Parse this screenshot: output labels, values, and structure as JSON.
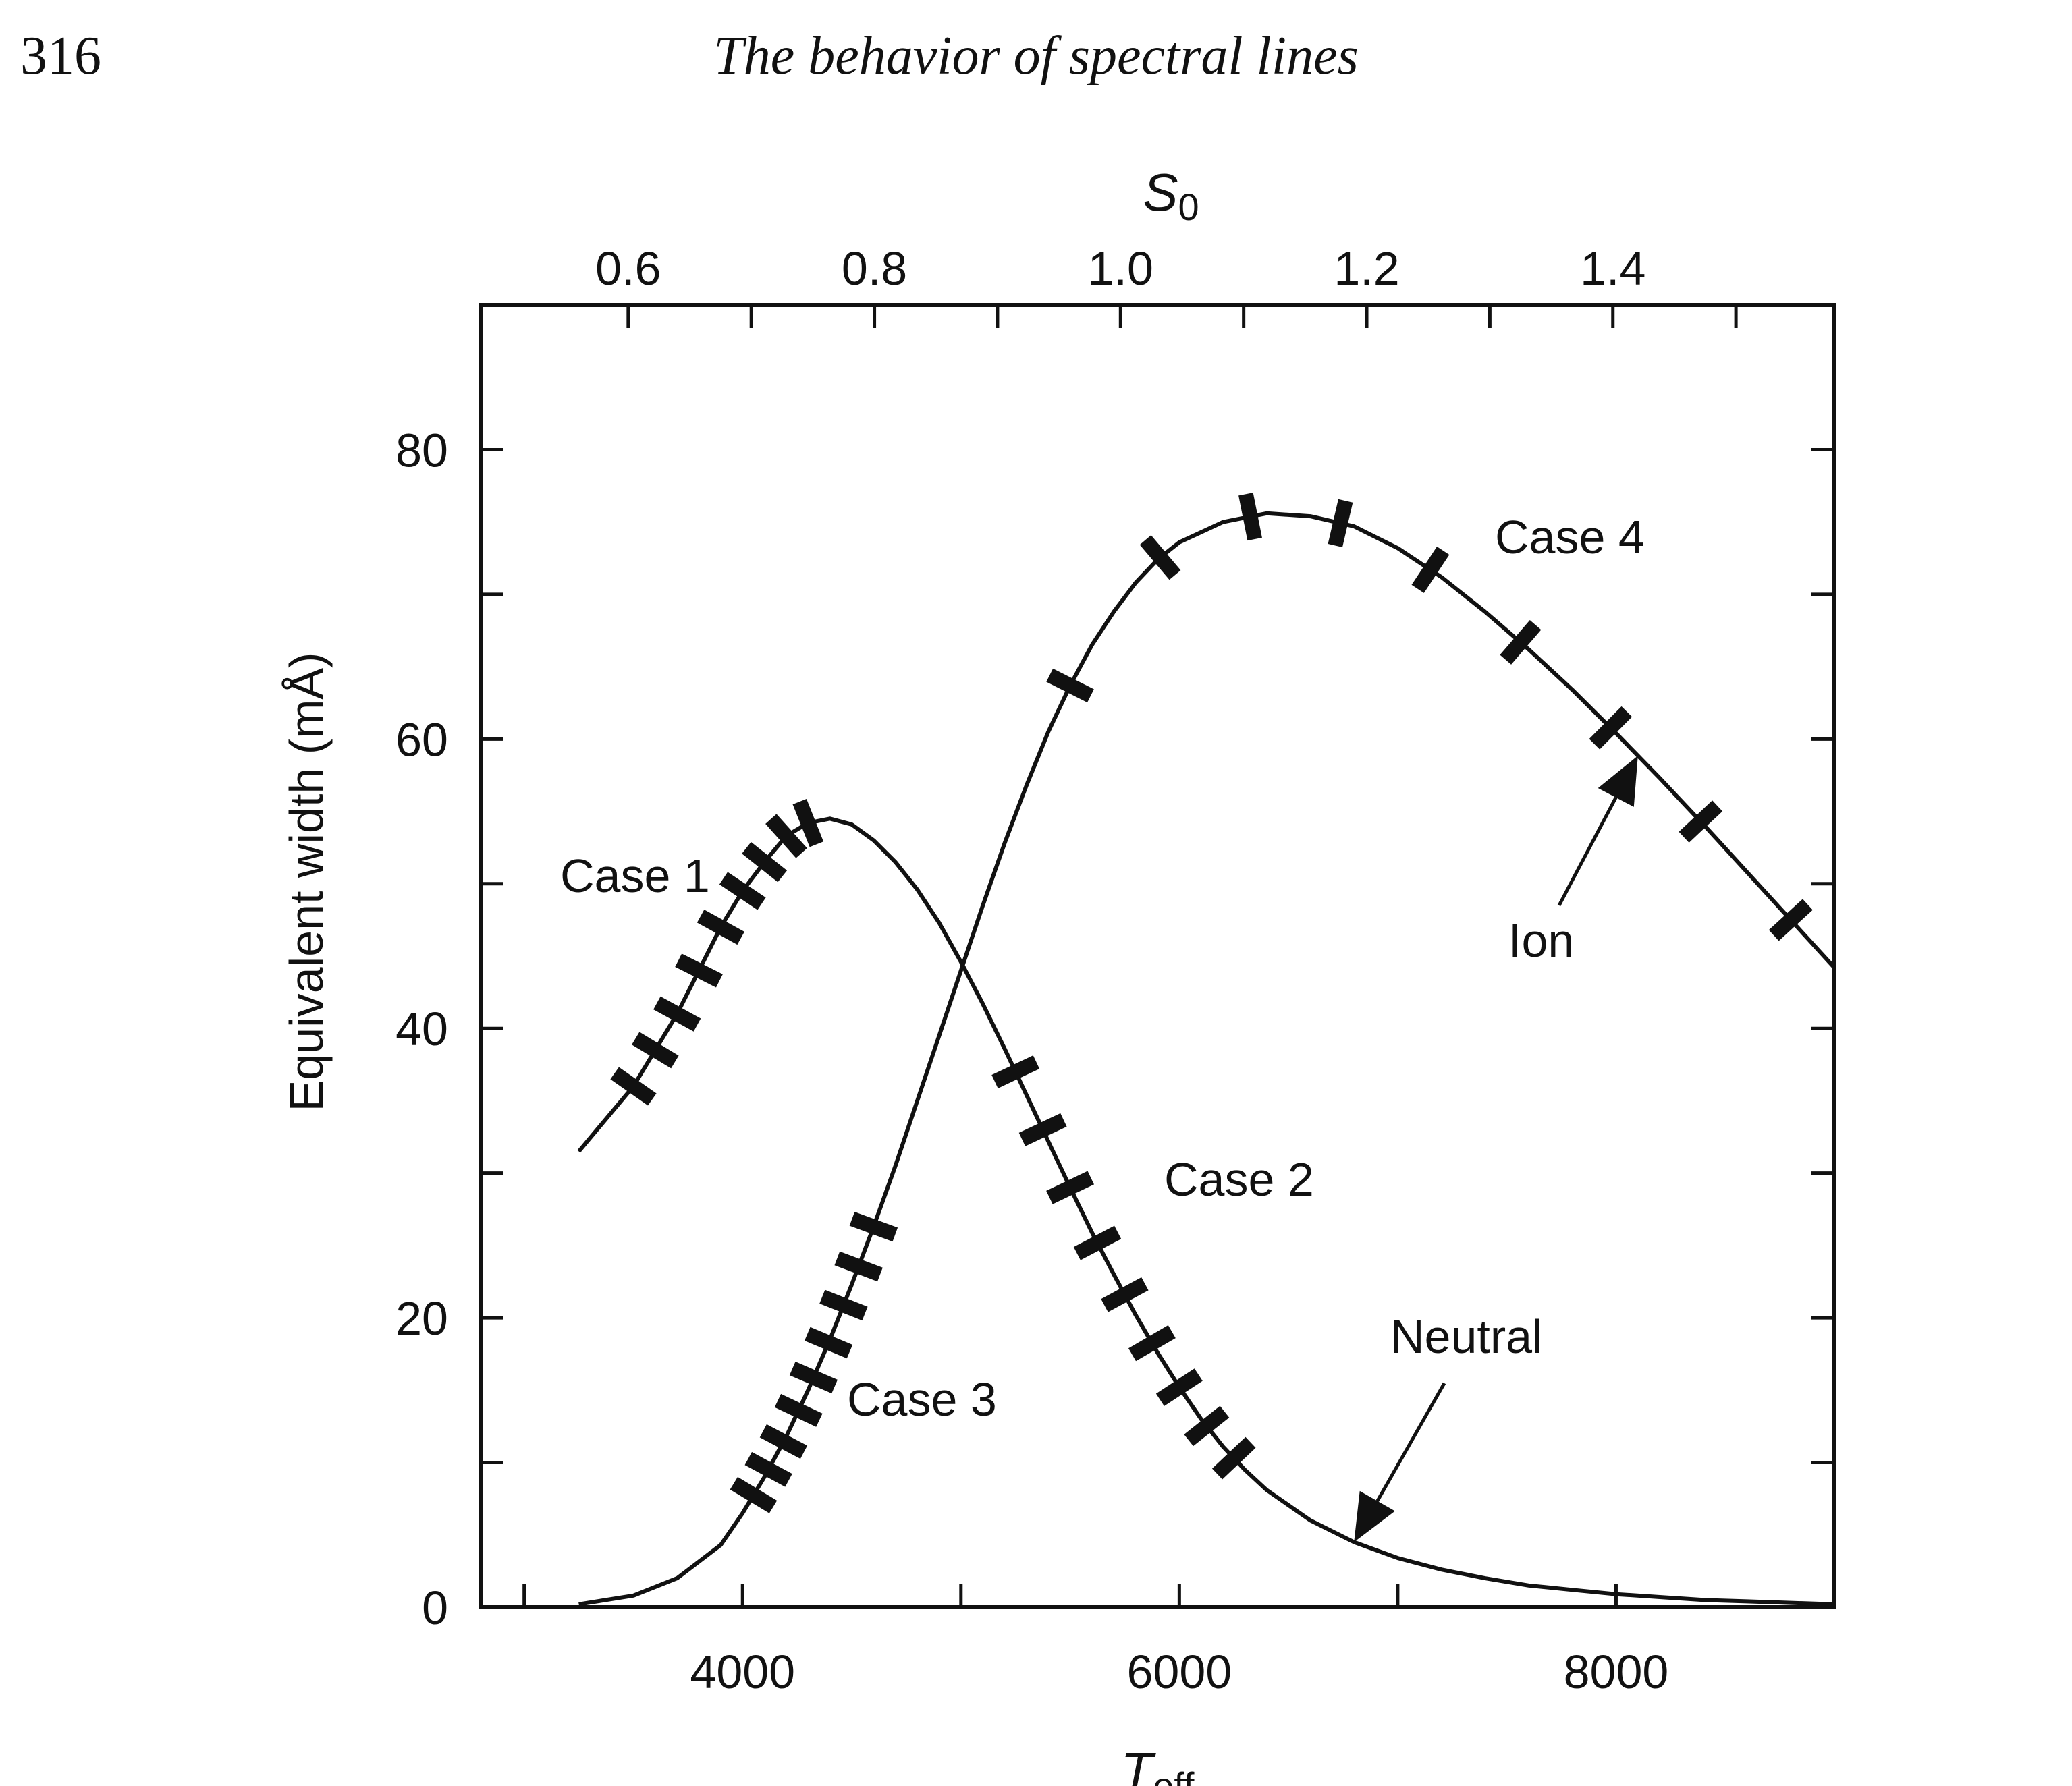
{
  "header": {
    "page_number": "316",
    "running_head": "The behavior of spectral lines"
  },
  "chart_data": {
    "type": "line",
    "xlabel": "T",
    "xlabel_sub": "eff",
    "ylabel": "Equivalent width (mÅ)",
    "top_xlabel": "S",
    "top_xlabel_sub": "0",
    "xlim": [
      2800,
      9000
    ],
    "ylim": [
      0,
      90
    ],
    "x_ticks": [
      4000,
      6000,
      8000
    ],
    "x_minor_ticks": [
      3000,
      5000,
      7000,
      9000
    ],
    "y_ticks": [
      0,
      20,
      40,
      60,
      80
    ],
    "y_minor_ticks": [
      10,
      30,
      50,
      70
    ],
    "top_ticks": [
      0.6,
      0.8,
      1.0,
      1.2,
      1.4
    ],
    "top_minor_ticks": [
      0.7,
      0.9,
      1.1,
      1.3,
      1.5
    ],
    "top_axis_range": [
      0.48,
      1.58
    ],
    "grid": false,
    "series": [
      {
        "name": "Neutral",
        "x": [
          3250,
          3500,
          3700,
          3900,
          4000,
          4100,
          4200,
          4300,
          4400,
          4500,
          4600,
          4700,
          4800,
          4900,
          5000,
          5100,
          5200,
          5300,
          5400,
          5500,
          5600,
          5700,
          5800,
          5900,
          6000,
          6100,
          6200,
          6300,
          6400,
          6600,
          6800,
          7000,
          7200,
          7400,
          7600,
          7800,
          8000,
          8200,
          8400,
          8600,
          8800,
          9000
        ],
        "y": [
          31.5,
          36,
          41,
          47,
          49.5,
          51.5,
          53.3,
          54.2,
          54.5,
          54.1,
          53,
          51.5,
          49.6,
          47.3,
          44.6,
          41.7,
          38.6,
          35.4,
          32.2,
          29,
          25.9,
          23,
          20.2,
          17.6,
          15.2,
          13,
          11.1,
          9.5,
          8.1,
          6,
          4.5,
          3.4,
          2.6,
          2,
          1.5,
          1.2,
          0.9,
          0.7,
          0.5,
          0.4,
          0.3,
          0.2
        ]
      },
      {
        "name": "Ion",
        "x": [
          3250,
          3500,
          3700,
          3900,
          4000,
          4100,
          4200,
          4300,
          4400,
          4500,
          4600,
          4700,
          4800,
          4900,
          5000,
          5100,
          5200,
          5300,
          5400,
          5500,
          5600,
          5700,
          5800,
          5900,
          6000,
          6200,
          6400,
          6600,
          6800,
          7000,
          7200,
          7400,
          7600,
          7800,
          8000,
          8200,
          8400,
          8600,
          8800,
          9000
        ],
        "y": [
          0.2,
          0.8,
          2,
          4.3,
          6.5,
          9,
          11.8,
          15,
          18.5,
          22.3,
          26.3,
          30.5,
          35,
          39.5,
          44,
          48.5,
          52.8,
          56.8,
          60.5,
          63.7,
          66.5,
          68.8,
          70.8,
          72.4,
          73.6,
          75,
          75.6,
          75.4,
          74.7,
          73.2,
          71.2,
          68.8,
          66.2,
          63.4,
          60.4,
          57.3,
          54.1,
          50.8,
          47.5,
          44.2
        ]
      }
    ],
    "annotations": [
      {
        "text": "Case 1",
        "series": "Neutral",
        "range": [
          3500,
          4300
        ]
      },
      {
        "text": "Case 2",
        "series": "Neutral",
        "range": [
          5250,
          6250
        ]
      },
      {
        "text": "Case 3",
        "series": "Ion",
        "range": [
          4050,
          4600
        ]
      },
      {
        "text": "Case 4",
        "series": "Ion",
        "range": [
          5500,
          8800
        ]
      },
      {
        "text": "Neutral",
        "arrow_to_series": "Neutral",
        "arrow_to_x": 6800
      },
      {
        "text": "Ion",
        "arrow_to_series": "Ion",
        "arrow_to_x": 8100
      }
    ]
  }
}
